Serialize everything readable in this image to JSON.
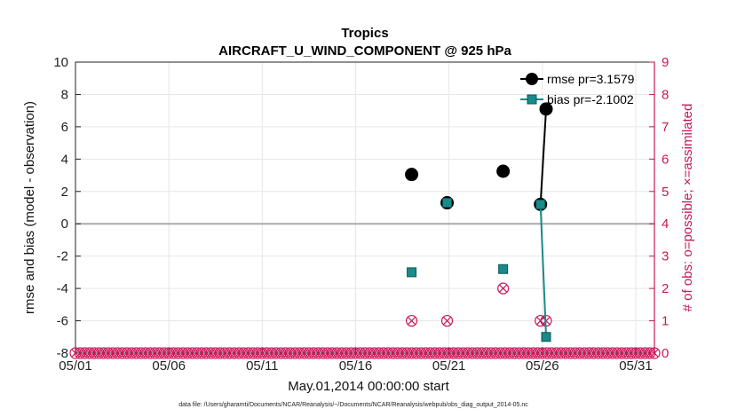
{
  "chart_data": {
    "type": "line",
    "title": "Tropics",
    "subtitle": "AIRCRAFT_U_WIND_COMPONENT @ 925 hPa",
    "xlabel": "May.01,2014 00:00:00 start",
    "ylabel": "rmse and bias (model - observation)",
    "y2label": "# of obs: o=possible; ×=assimilated",
    "footnote": "data file: /Users/gharamti/Documents/NCAR/Reanalysis/~/Documents/NCAR/Reanalysis/webpub/obs_diag_output_2014-05.nc",
    "xlim": [
      1,
      32
    ],
    "ylim": [
      -8,
      10
    ],
    "y2lim": [
      0,
      9
    ],
    "x_ticks": [
      "05/01",
      "05/06",
      "05/11",
      "05/16",
      "05/21",
      "05/26",
      "05/31"
    ],
    "x_tick_values": [
      1,
      6,
      11,
      16,
      21,
      26,
      31
    ],
    "y_ticks": [
      "-8",
      "-6",
      "-4",
      "-2",
      "0",
      "2",
      "4",
      "6",
      "8",
      "10"
    ],
    "y_tick_values": [
      -8,
      -6,
      -4,
      -2,
      0,
      2,
      4,
      6,
      8,
      10
    ],
    "y2_ticks": [
      "0",
      "1",
      "2",
      "3",
      "4",
      "5",
      "6",
      "7",
      "8",
      "9"
    ],
    "y2_tick_values": [
      0,
      1,
      2,
      3,
      4,
      5,
      6,
      7,
      8,
      9
    ],
    "grid": true,
    "legend_position": "top-right",
    "series": [
      {
        "name": "rmse pr=3.1579",
        "color": "#000000",
        "marker": "circle",
        "points": [
          [
            19,
            3.05
          ],
          [
            20.9,
            1.3
          ],
          [
            23.9,
            3.25
          ],
          [
            25.9,
            1.2
          ],
          [
            26.2,
            7.1
          ]
        ],
        "connect_last": 2
      },
      {
        "name": "bias pr=-2.1002",
        "color": "#1a8a8a",
        "marker": "square",
        "points": [
          [
            19,
            -3.0
          ],
          [
            20.9,
            1.3
          ],
          [
            23.9,
            -2.8
          ],
          [
            25.9,
            1.2
          ],
          [
            26.2,
            -7.0
          ]
        ],
        "connect_last": 2
      }
    ],
    "obs_counts": {
      "color": "#c8175a",
      "possible": [
        [
          19,
          1
        ],
        [
          20.9,
          1
        ],
        [
          23.9,
          2
        ],
        [
          25.9,
          1
        ],
        [
          26.2,
          1
        ]
      ],
      "assimilated": [
        [
          19,
          1
        ],
        [
          20.9,
          1
        ],
        [
          23.9,
          2
        ],
        [
          25.9,
          1
        ],
        [
          26.2,
          1
        ]
      ],
      "baseline_start": 1,
      "baseline_end": 32,
      "baseline_step": 0.25
    }
  }
}
